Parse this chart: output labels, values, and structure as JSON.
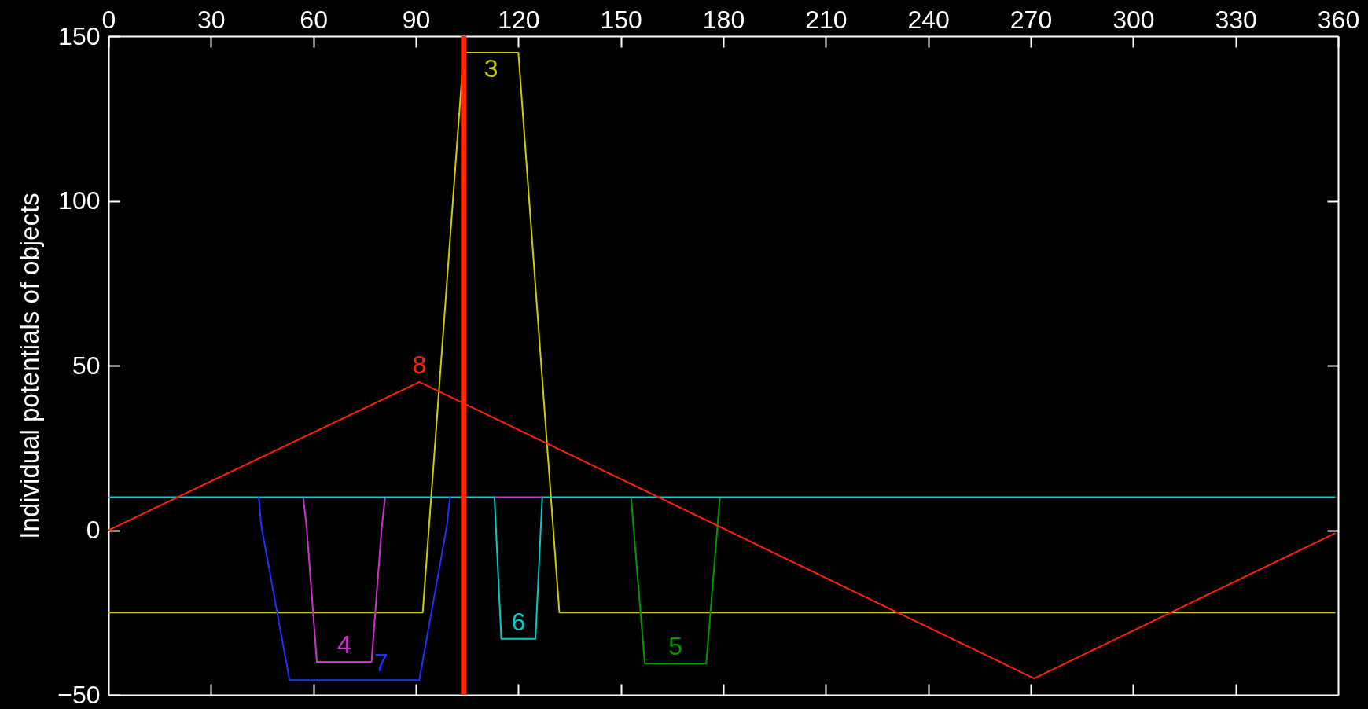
{
  "chart_data": {
    "type": "line",
    "ylabel": "Individual potentials of objects",
    "xlim": [
      0,
      360
    ],
    "xticks": [
      0,
      30,
      60,
      90,
      120,
      150,
      180,
      210,
      240,
      270,
      300,
      330,
      360
    ],
    "ylim": [
      -50,
      150
    ],
    "yticks": [
      -50,
      0,
      50,
      100,
      150
    ],
    "series": [
      {
        "name": "3",
        "color": "#cccc00",
        "x": [
          0,
          92,
          104,
          120,
          132,
          359
        ],
        "values": [
          -25,
          -25,
          145,
          145,
          -25,
          -25
        ]
      },
      {
        "name": "4",
        "color": "#cc33cc",
        "x": [
          57,
          58,
          61,
          77,
          80,
          81,
          97,
          113,
          127
        ],
        "values": [
          10,
          1,
          -40,
          -40,
          1,
          10,
          null,
          10,
          10
        ]
      },
      {
        "name": "5",
        "color": "#009900",
        "x": [
          153,
          157,
          175,
          179
        ],
        "values": [
          10,
          -40.5,
          -40.5,
          10
        ]
      },
      {
        "name": "6",
        "color": "#00cccc",
        "x": [
          0,
          113,
          115,
          125,
          127,
          359
        ],
        "values": [
          10,
          10,
          -33,
          -33,
          10,
          10
        ]
      },
      {
        "name": "7",
        "color": "#1a33ff",
        "x": [
          44,
          44.7,
          53,
          91,
          99.1,
          100
        ],
        "values": [
          10,
          1.5,
          -45.5,
          -45.5,
          1.5,
          10
        ]
      },
      {
        "name": "8",
        "color": "#ff2200",
        "x": [
          0,
          91,
          271,
          359
        ],
        "values": [
          0,
          45,
          -45,
          -1
        ]
      }
    ],
    "ref_lines": [
      {
        "axis": "x",
        "value": 104,
        "color": "#ff2a00"
      }
    ]
  }
}
